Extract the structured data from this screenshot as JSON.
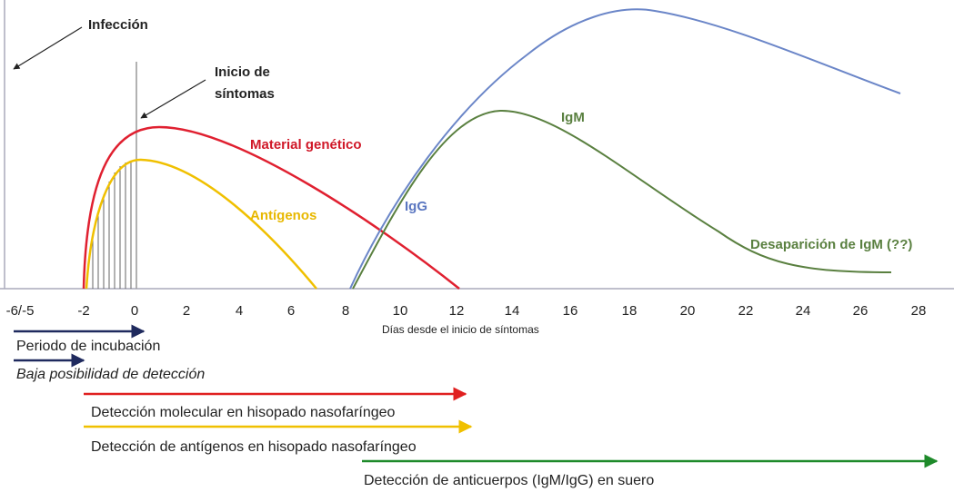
{
  "annotations": {
    "infection": "Infección",
    "symptom_onset_1": "Inicio de",
    "symptom_onset_2": "síntomas"
  },
  "curves": {
    "genetic_material": "Material genético",
    "antigens": "Antígenos",
    "igg": "IgG",
    "igm": "IgM",
    "igm_disappearance": "Desaparición de IgM (??)"
  },
  "x_axis": {
    "label": "Días desde el inicio de síntomas",
    "ticks": [
      "-6/-5",
      "-2",
      "0",
      "2",
      "4",
      "6",
      "8",
      "10",
      "12",
      "14",
      "16",
      "18",
      "20",
      "22",
      "24",
      "26",
      "28"
    ]
  },
  "periods": [
    "Periodo de incubación",
    "Baja posibilidad de detección",
    "Detección molecular en hisopado nasofaríngeo",
    "Detección de antígenos en hisopado nasofaríngeo",
    "Detección de anticuerpos (IgM/IgG) en suero"
  ]
}
